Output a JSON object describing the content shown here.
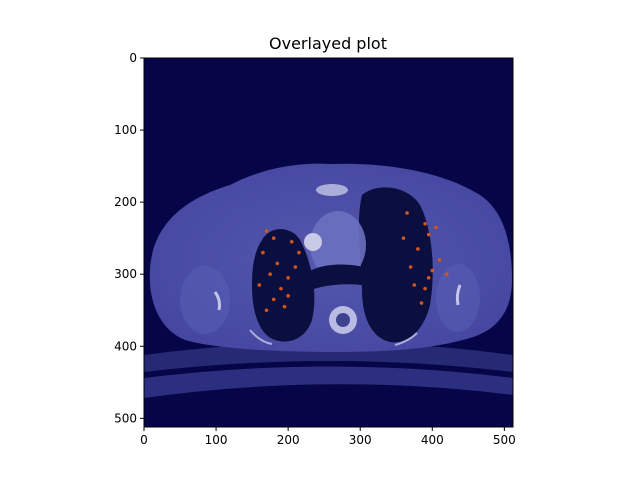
{
  "chart_data": {
    "type": "heatmap",
    "title": "Overlayed plot",
    "xlabel": "",
    "ylabel": "",
    "xlim": [
      0,
      512
    ],
    "ylim": [
      512,
      0
    ],
    "x_ticks": [
      0,
      100,
      200,
      300,
      400,
      500
    ],
    "y_ticks": [
      0,
      100,
      200,
      300,
      400,
      500
    ],
    "x_tick_labels": [
      "0",
      "100",
      "200",
      "300",
      "400",
      "500"
    ],
    "y_tick_labels": [
      "0",
      "100",
      "200",
      "300",
      "400",
      "500"
    ],
    "image_description": "axial chest CT slice overlaid with a dark-blue colormap; orange/red highlighted regions inside both lungs",
    "overlay_highlight_points": [
      [
        170,
        240
      ],
      [
        180,
        250
      ],
      [
        165,
        270
      ],
      [
        185,
        285
      ],
      [
        175,
        300
      ],
      [
        160,
        315
      ],
      [
        190,
        320
      ],
      [
        200,
        305
      ],
      [
        210,
        290
      ],
      [
        180,
        335
      ],
      [
        195,
        345
      ],
      [
        205,
        255
      ],
      [
        215,
        270
      ],
      [
        170,
        350
      ],
      [
        200,
        330
      ],
      [
        390,
        230
      ],
      [
        395,
        245
      ],
      [
        405,
        235
      ],
      [
        380,
        265
      ],
      [
        370,
        290
      ],
      [
        400,
        295
      ],
      [
        390,
        320
      ],
      [
        410,
        280
      ],
      [
        375,
        315
      ],
      [
        420,
        300
      ],
      [
        385,
        340
      ],
      [
        360,
        250
      ],
      [
        365,
        215
      ],
      [
        395,
        305
      ]
    ],
    "colors": {
      "background": "#050547",
      "body": "#4a4fa8",
      "lung": "#0b0f3f",
      "highlight": "#d4551a"
    }
  }
}
